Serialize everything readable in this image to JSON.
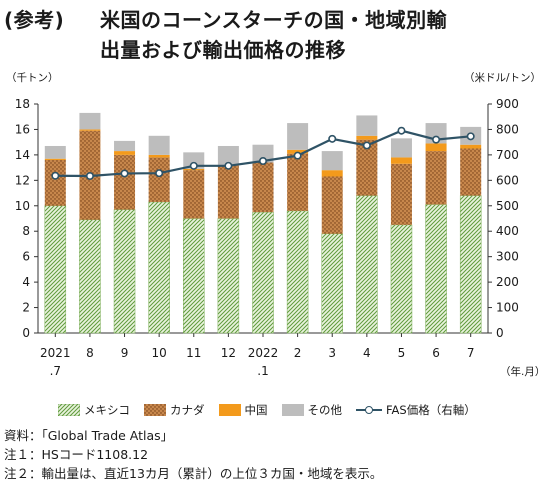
{
  "title": {
    "prefix": "(参考)",
    "line1": "米国のコーンスターチの国・地域別輸",
    "line2": "出量および輸出価格の推移"
  },
  "chart_data": {
    "type": "bar",
    "stacked": true,
    "y_left_unit": "（千トン）",
    "y_right_unit": "（米ドル/トン）",
    "x_unit": "（年.月）",
    "ylim_left": [
      0,
      18
    ],
    "ylim_right": [
      0,
      900
    ],
    "yticks_left": [
      "0",
      "2",
      "4",
      "6",
      "8",
      "10",
      "12",
      "14",
      "16",
      "18"
    ],
    "yticks_right": [
      "0",
      "100",
      "200",
      "300",
      "400",
      "500",
      "600",
      "700",
      "800",
      "900"
    ],
    "grid": false,
    "legend_position": "bottom",
    "categories": [
      [
        "2021",
        ".7"
      ],
      [
        "8",
        ""
      ],
      [
        "9",
        ""
      ],
      [
        "10",
        ""
      ],
      [
        "11",
        ""
      ],
      [
        "12",
        ""
      ],
      [
        "2022",
        ".1"
      ],
      [
        "2",
        ""
      ],
      [
        "3",
        ""
      ],
      [
        "4",
        ""
      ],
      [
        "5",
        ""
      ],
      [
        "6",
        ""
      ],
      [
        "7",
        ""
      ]
    ],
    "series": [
      {
        "name": "メキシコ",
        "pattern": "hatch-green",
        "values": [
          10.0,
          8.9,
          9.7,
          10.3,
          9.0,
          9.0,
          9.5,
          9.6,
          7.8,
          10.8,
          8.5,
          10.1,
          10.8
        ]
      },
      {
        "name": "カナダ",
        "pattern": "dots-brown",
        "values": [
          3.6,
          7.0,
          4.3,
          3.5,
          3.8,
          4.2,
          3.9,
          4.5,
          4.5,
          4.4,
          4.8,
          4.2,
          3.7
        ]
      },
      {
        "name": "中国",
        "color": "#f39a1c",
        "values": [
          0.1,
          0.1,
          0.3,
          0.2,
          0.1,
          0.0,
          0.0,
          0.3,
          0.5,
          0.3,
          0.5,
          0.6,
          0.3
        ]
      },
      {
        "name": "その他",
        "color": "#bdbdbd",
        "values": [
          1.0,
          1.3,
          0.8,
          1.5,
          1.3,
          1.5,
          1.4,
          2.1,
          1.5,
          1.6,
          1.5,
          1.6,
          1.4
        ]
      }
    ],
    "line_series": {
      "name": "FAS価格（右軸）",
      "color": "#2f5366",
      "values": [
        618,
        617,
        627,
        628,
        657,
        657,
        676,
        697,
        763,
        737,
        795,
        760,
        773
      ]
    }
  },
  "notes": [
    "資料：「Global Trade Atlas」",
    "注１：HSコード1108.12",
    "注２：輸出量は、直近13カ月（累計）の上位３カ国・地域を表示。"
  ]
}
